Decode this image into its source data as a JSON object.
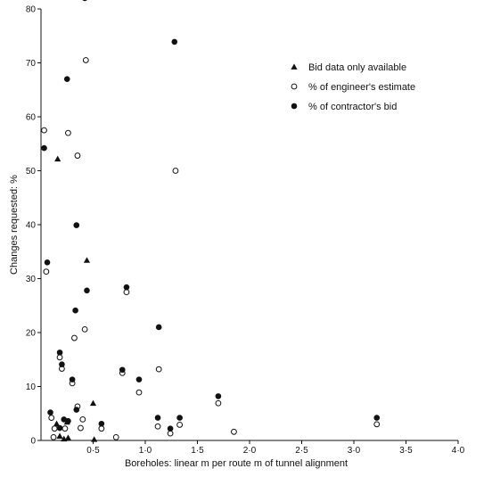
{
  "chart_data": {
    "type": "scatter",
    "xlabel": "Boreholes: linear m per route m of tunnel alignment",
    "ylabel": "Changes requested: %",
    "xlim": [
      0,
      4.0
    ],
    "ylim": [
      0,
      80
    ],
    "x_ticks": [
      "0·5",
      "1·0",
      "1·5",
      "2·0",
      "2·5",
      "3·0",
      "3·5",
      "4·0"
    ],
    "y_ticks": [
      "0",
      "10",
      "20",
      "30",
      "40",
      "50",
      "60",
      "70",
      "80"
    ],
    "grid": false,
    "legend_position": "top-right",
    "series": [
      {
        "name": "Bid data only available",
        "marker": "triangle",
        "color": "#111111",
        "points": [
          [
            0.16,
            52.2
          ],
          [
            0.44,
            33.4
          ],
          [
            0.5,
            6.9
          ],
          [
            0.15,
            3.1
          ],
          [
            0.25,
            3.4
          ],
          [
            0.18,
            0.8
          ],
          [
            0.22,
            0.3
          ],
          [
            0.26,
            0.5
          ],
          [
            0.51,
            0.2
          ]
        ]
      },
      {
        "name": "% of engineer's estimate",
        "marker": "open-circle",
        "color": "#111111",
        "points": [
          [
            0.03,
            57.5
          ],
          [
            0.26,
            57.0
          ],
          [
            0.35,
            52.8
          ],
          [
            0.43,
            70.5
          ],
          [
            1.29,
            50.0
          ],
          [
            0.05,
            31.3
          ],
          [
            0.42,
            20.6
          ],
          [
            0.32,
            19.0
          ],
          [
            0.18,
            15.4
          ],
          [
            0.2,
            13.3
          ],
          [
            0.3,
            10.6
          ],
          [
            0.82,
            27.5
          ],
          [
            0.78,
            12.5
          ],
          [
            0.94,
            8.9
          ],
          [
            1.13,
            13.2
          ],
          [
            1.7,
            6.9
          ],
          [
            0.35,
            6.3
          ],
          [
            0.1,
            4.2
          ],
          [
            0.13,
            2.2
          ],
          [
            0.23,
            2.2
          ],
          [
            0.4,
            3.9
          ],
          [
            0.38,
            2.3
          ],
          [
            0.58,
            2.2
          ],
          [
            0.72,
            0.6
          ],
          [
            0.12,
            0.6
          ],
          [
            1.12,
            2.6
          ],
          [
            1.24,
            1.3
          ],
          [
            1.33,
            2.9
          ],
          [
            1.85,
            1.6
          ],
          [
            3.22,
            3.0
          ]
        ]
      },
      {
        "name": "% of contractor's bid",
        "marker": "filled-circle",
        "color": "#111111",
        "points": [
          [
            0.42,
            82.0
          ],
          [
            1.28,
            73.9
          ],
          [
            0.25,
            67.0
          ],
          [
            0.03,
            54.2
          ],
          [
            0.34,
            39.9
          ],
          [
            0.06,
            33.0
          ],
          [
            0.44,
            27.8
          ],
          [
            0.82,
            28.4
          ],
          [
            0.33,
            24.1
          ],
          [
            1.13,
            21.0
          ],
          [
            0.18,
            16.3
          ],
          [
            0.2,
            14.1
          ],
          [
            0.3,
            11.3
          ],
          [
            0.78,
            13.1
          ],
          [
            0.94,
            11.3
          ],
          [
            0.34,
            5.7
          ],
          [
            0.09,
            5.2
          ],
          [
            0.22,
            3.9
          ],
          [
            0.26,
            3.6
          ],
          [
            0.18,
            2.3
          ],
          [
            0.58,
            3.1
          ],
          [
            1.12,
            4.2
          ],
          [
            1.33,
            4.2
          ],
          [
            1.24,
            2.2
          ],
          [
            1.7,
            8.2
          ],
          [
            3.22,
            4.2
          ]
        ]
      }
    ]
  }
}
